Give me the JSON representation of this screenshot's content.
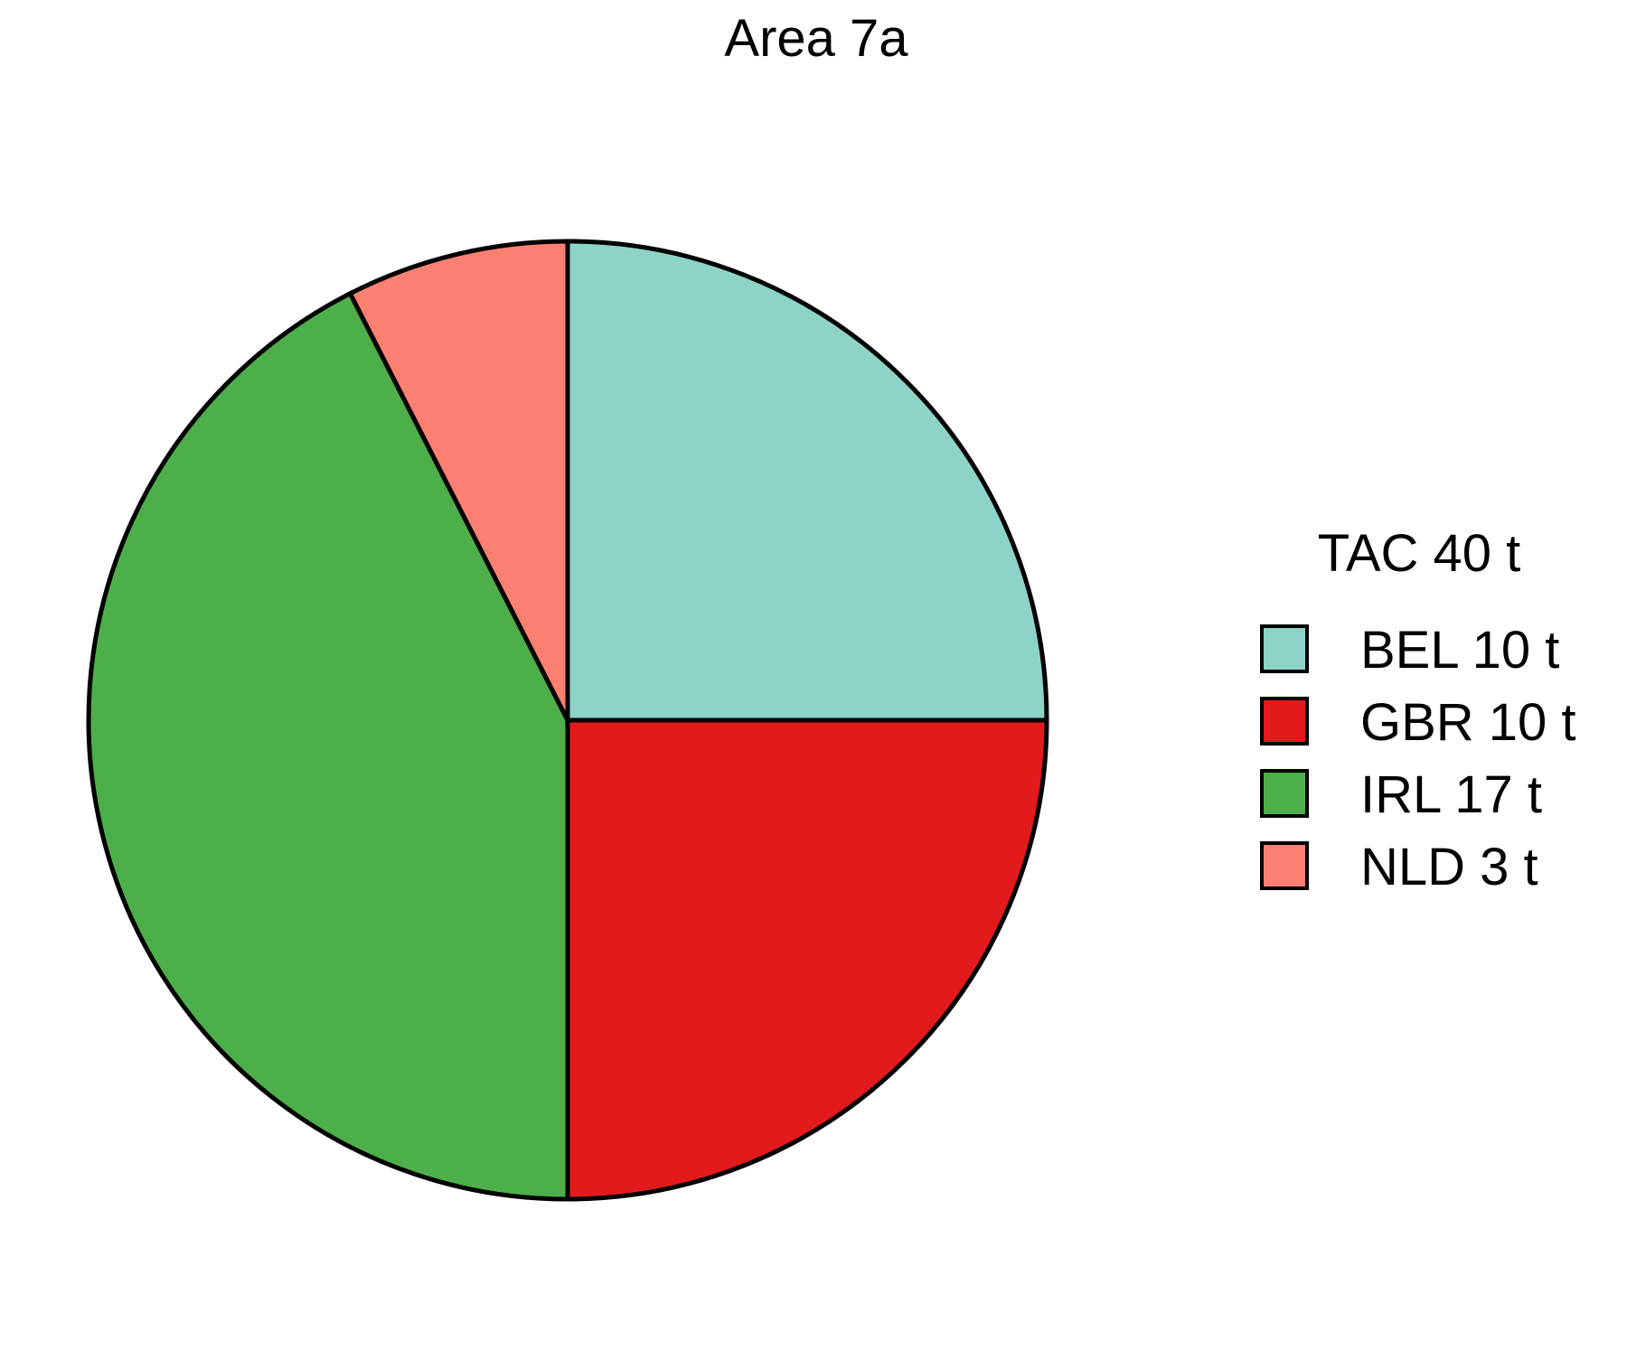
{
  "chart_data": {
    "type": "pie",
    "title": "Area 7a",
    "legend": {
      "title": "TAC 40 t",
      "position": "right"
    },
    "slices": [
      {
        "label": "BEL 10 t",
        "category": "BEL",
        "value": 10,
        "color": "#8DD3C7"
      },
      {
        "label": "GBR 10 t",
        "category": "GBR",
        "value": 10,
        "color": "#E31A1C"
      },
      {
        "label": "IRL 17 t",
        "category": "IRL",
        "value": 17,
        "color": "#4DAF4A"
      },
      {
        "label": "NLD 3 t",
        "category": "NLD",
        "value": 3,
        "color": "#FB8072"
      }
    ],
    "unit": "t",
    "start_angle": "12 o'clock",
    "direction": "clockwise",
    "outline_color": "#000000"
  }
}
